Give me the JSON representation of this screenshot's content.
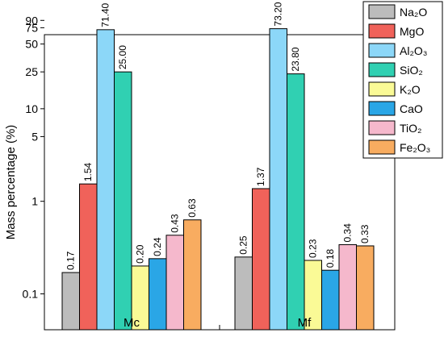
{
  "chart_data": {
    "type": "bar",
    "scale": "log",
    "ylabel": "Mass percentage (%)",
    "xlabel": "",
    "ylim": [
      0.06,
      90
    ],
    "yticks": [
      "90",
      "75",
      "50",
      "25",
      "10",
      "5",
      "1",
      "0.1"
    ],
    "ytick_values": [
      90,
      75,
      50,
      25,
      10,
      5,
      1,
      0.1
    ],
    "categories": [
      "Mc",
      "Mf"
    ],
    "series": [
      {
        "name": "Na₂O",
        "color": "#bcbcbc",
        "values": [
          0.17,
          0.25
        ],
        "labels": [
          "0.17",
          "0.25"
        ]
      },
      {
        "name": "MgO",
        "color": "#f0625a",
        "values": [
          1.54,
          1.37
        ],
        "labels": [
          "1.54",
          "1.37"
        ]
      },
      {
        "name": "Al₂O₃",
        "color": "#8cd7f8",
        "values": [
          71.4,
          73.2
        ],
        "labels": [
          "71.40",
          "73.20"
        ]
      },
      {
        "name": "SiO₂",
        "color": "#30d0b2",
        "values": [
          25.0,
          23.8
        ],
        "labels": [
          "25.00",
          "23.80"
        ]
      },
      {
        "name": "K₂O",
        "color": "#fafa96",
        "values": [
          0.2,
          0.23
        ],
        "labels": [
          "0.20",
          "0.23"
        ]
      },
      {
        "name": "CaO",
        "color": "#2aa6e6",
        "values": [
          0.24,
          0.18
        ],
        "labels": [
          "0.24",
          "0.18"
        ]
      },
      {
        "name": "TiO₂",
        "color": "#f5b8cc",
        "values": [
          0.43,
          0.34
        ],
        "labels": [
          "0.43",
          "0.34"
        ]
      },
      {
        "name": "Fe₂O₃",
        "color": "#f8ac60",
        "values": [
          0.63,
          0.33
        ],
        "labels": [
          "0.63",
          "0.33"
        ]
      }
    ],
    "grid": false,
    "legend_position": "top-right"
  }
}
